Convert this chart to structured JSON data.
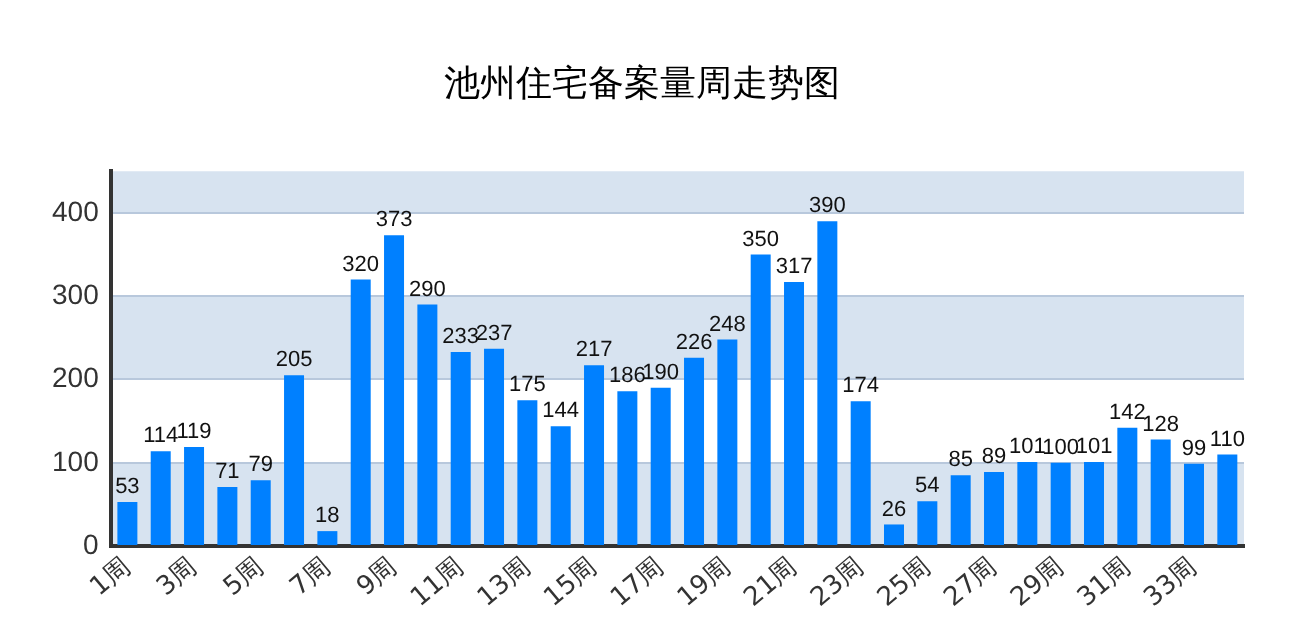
{
  "chart_data": {
    "type": "bar",
    "title": "池州住宅备案量周走势图",
    "categories": [
      "1周",
      null,
      "3周",
      null,
      "5周",
      null,
      "7周",
      null,
      "9周",
      null,
      "11周",
      null,
      "13周",
      null,
      "15周",
      null,
      "17周",
      null,
      "19周",
      null,
      "21周",
      null,
      "23周",
      null,
      "25周",
      null,
      "27周",
      null,
      "29周",
      null,
      "31周",
      null,
      "33周",
      null
    ],
    "values": [
      53,
      114,
      119,
      71,
      79,
      205,
      18,
      320,
      373,
      290,
      233,
      237,
      175,
      144,
      217,
      186,
      190,
      226,
      248,
      350,
      317,
      390,
      174,
      26,
      54,
      85,
      89,
      101,
      100,
      101,
      142,
      128,
      99,
      110
    ],
    "color": "#0080ff",
    "ylim": [
      0,
      450
    ],
    "yticks": [
      0,
      100,
      200,
      300,
      400
    ],
    "grid": "y",
    "data_labels": true,
    "legend": false
  }
}
